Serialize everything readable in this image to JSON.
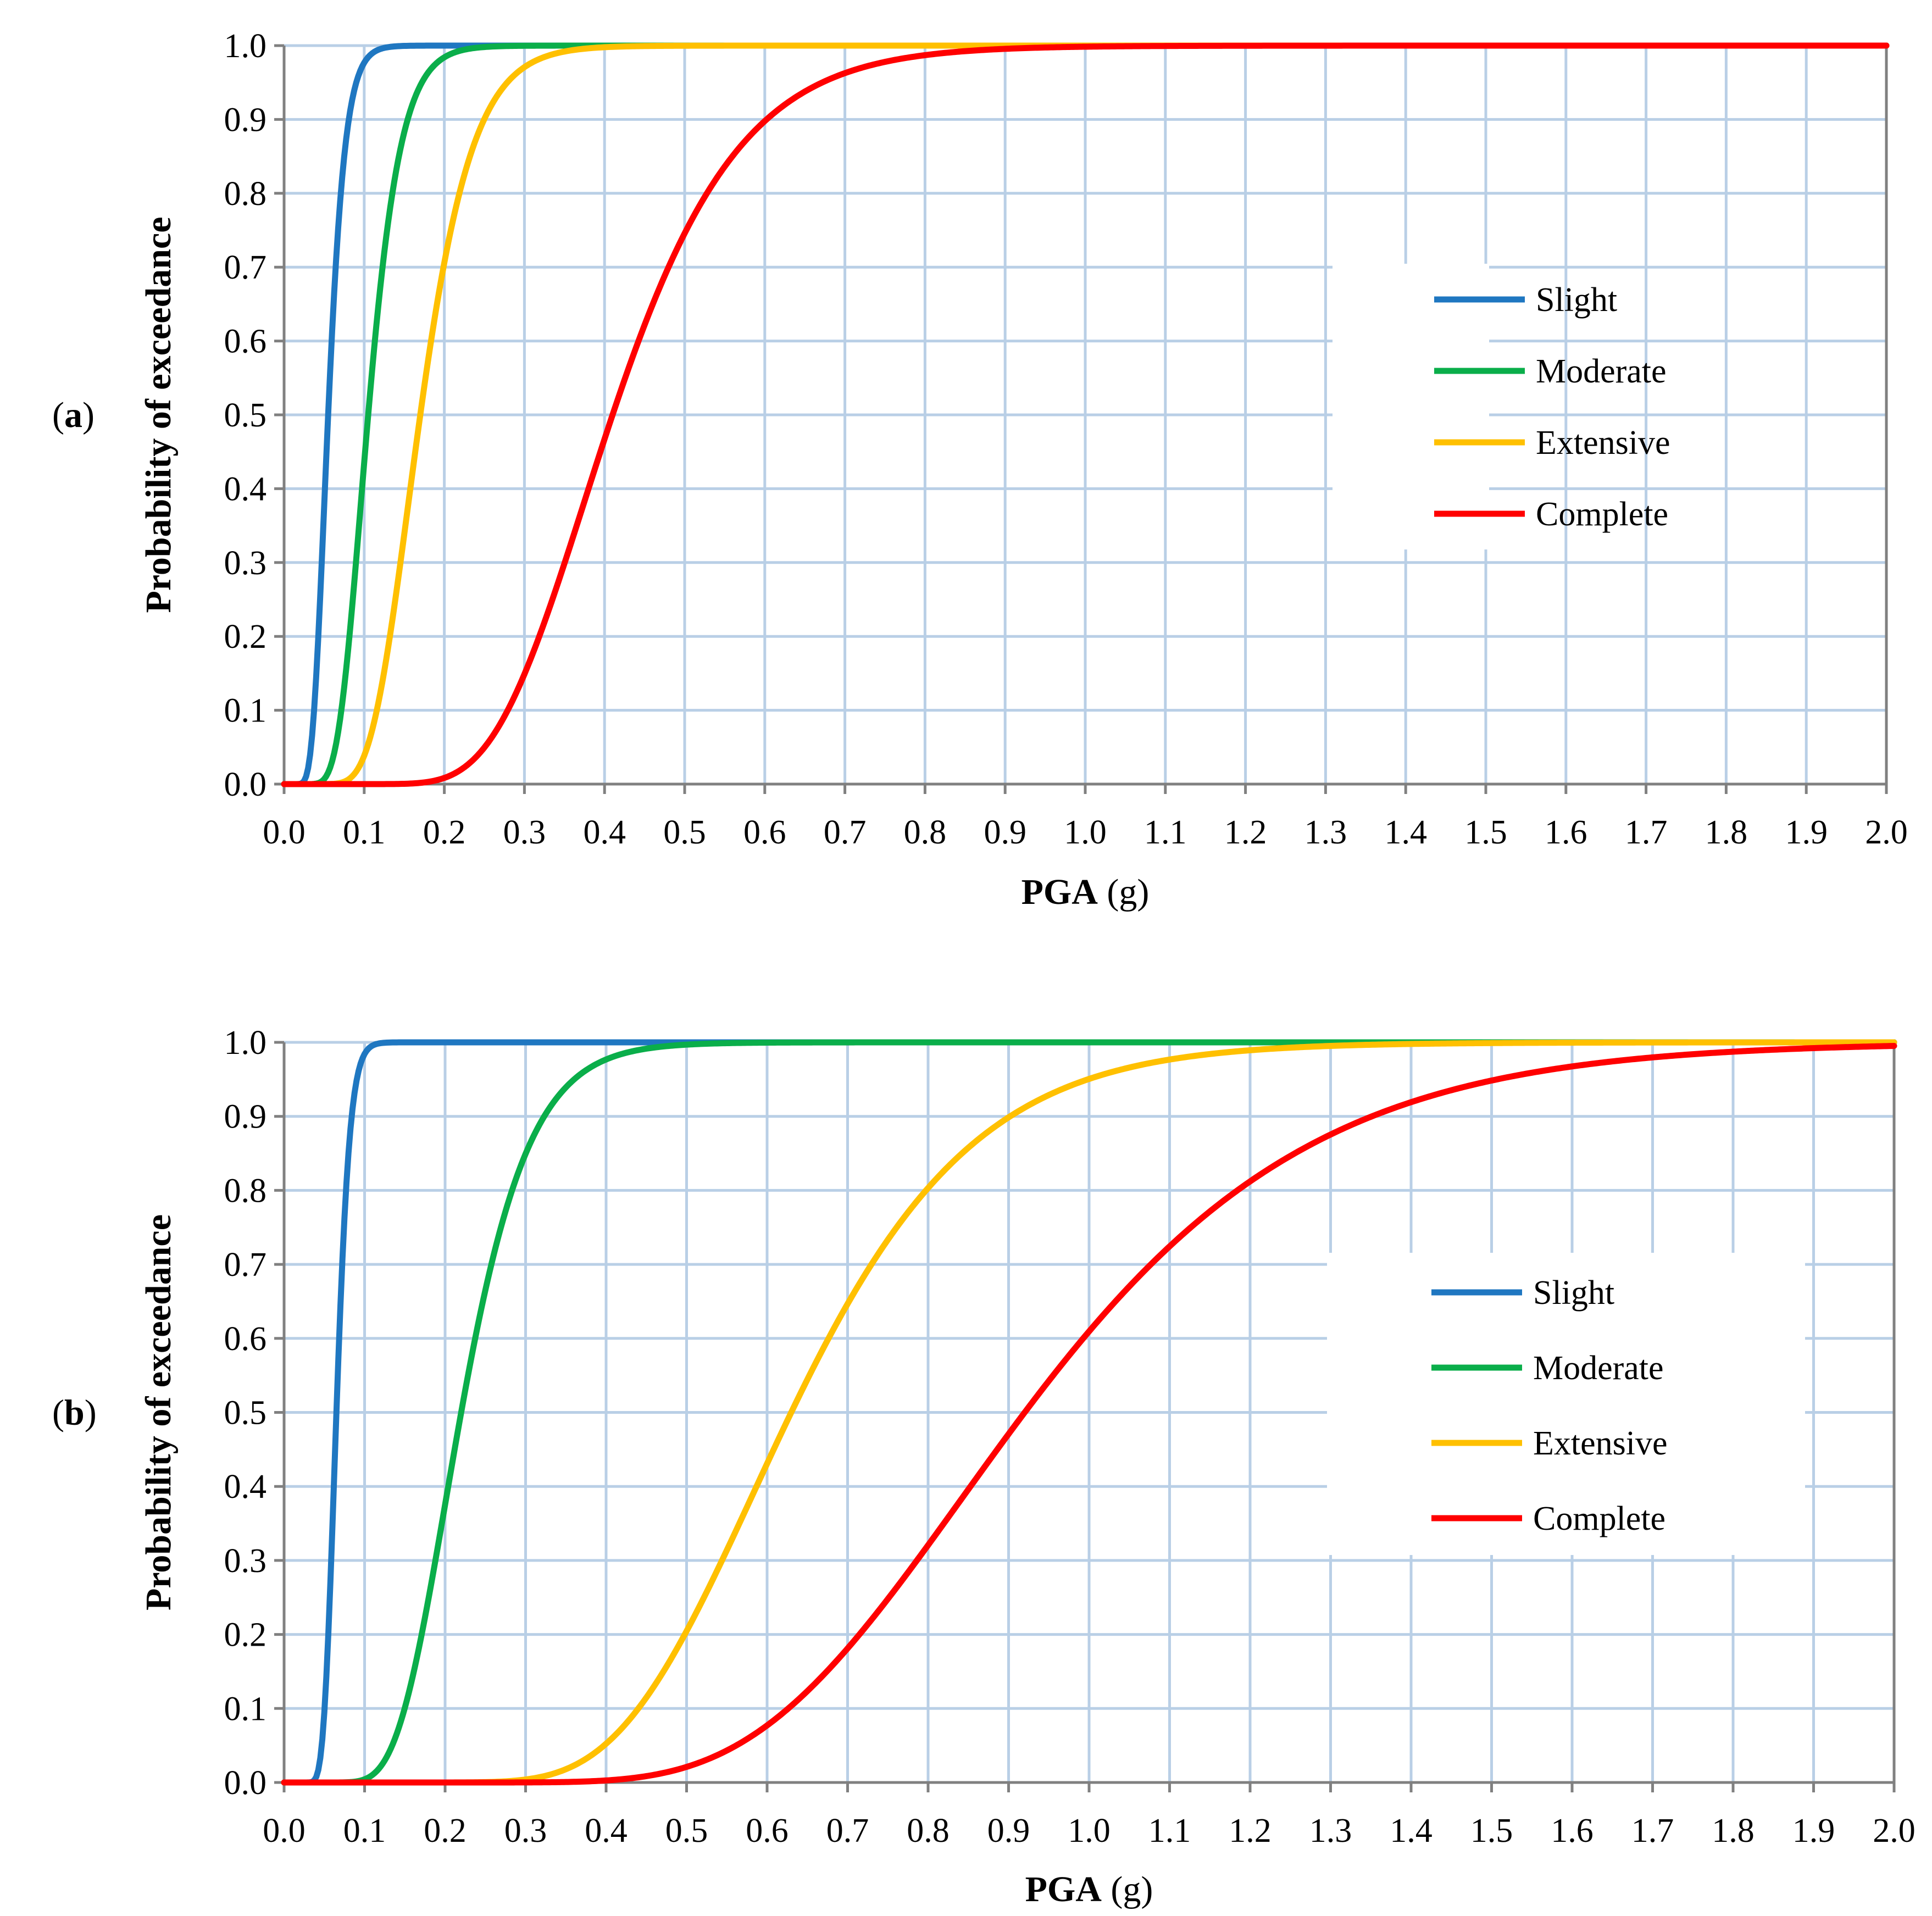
{
  "figure": {
    "panel_labels": [
      "(a)",
      "(b)"
    ]
  },
  "style": {
    "grid_color": "#b9cfe6",
    "axis_color": "#808080",
    "series_colors": {
      "Slight": "#1f77c1",
      "Moderate": "#0aae4a",
      "Extensive": "#ffc000",
      "Complete": "#ff0000"
    }
  },
  "chart_data": [
    {
      "type": "line",
      "panel": "(a)",
      "title": "",
      "xlabel_bold": "PGA",
      "xlabel_unit": "(g)",
      "ylabel": "Probability of exceedance",
      "xlim": [
        0,
        2.0
      ],
      "ylim": [
        0,
        1.0
      ],
      "xticks": [
        "0.0",
        "0.1",
        "0.2",
        "0.3",
        "0.4",
        "0.5",
        "0.6",
        "0.7",
        "0.8",
        "0.9",
        "1.0",
        "1.1",
        "1.2",
        "1.3",
        "1.4",
        "1.5",
        "1.6",
        "1.7",
        "1.8",
        "1.9",
        "2.0"
      ],
      "yticks": [
        "0.0",
        "0.1",
        "0.2",
        "0.3",
        "0.4",
        "0.5",
        "0.6",
        "0.7",
        "0.8",
        "0.9",
        "1.0"
      ],
      "grid": true,
      "legend_position": "center-right",
      "curve_model": "lognormal CDF",
      "series": [
        {
          "name": "Slight",
          "median": 0.055,
          "beta": 0.3
        },
        {
          "name": "Moderate",
          "median": 0.105,
          "beta": 0.3
        },
        {
          "name": "Extensive",
          "median": 0.17,
          "beta": 0.3
        },
        {
          "name": "Complete",
          "median": 0.41,
          "beta": 0.3
        }
      ]
    },
    {
      "type": "line",
      "panel": "(b)",
      "title": "",
      "xlabel_bold": "PGA",
      "xlabel_unit": "(g)",
      "ylabel": "Probability of exceedance",
      "xlim": [
        0,
        2.0
      ],
      "ylim": [
        0,
        1.0
      ],
      "xticks": [
        "0.0",
        "0.1",
        "0.2",
        "0.3",
        "0.4",
        "0.5",
        "0.6",
        "0.7",
        "0.8",
        "0.9",
        "1.0",
        "1.1",
        "1.2",
        "1.3",
        "1.4",
        "1.5",
        "1.6",
        "1.7",
        "1.8",
        "1.9",
        "2.0"
      ],
      "yticks": [
        "0.0",
        "0.1",
        "0.2",
        "0.3",
        "0.4",
        "0.5",
        "0.6",
        "0.7",
        "0.8",
        "0.9",
        "1.0"
      ],
      "grid": true,
      "legend_position": "center-right",
      "curve_model": "lognormal CDF",
      "series": [
        {
          "name": "Slight",
          "median": 0.065,
          "beta": 0.2
        },
        {
          "name": "Moderate",
          "median": 0.22,
          "beta": 0.3
        },
        {
          "name": "Extensive",
          "median": 0.63,
          "beta": 0.28
        },
        {
          "name": "Complete",
          "median": 0.92,
          "beta": 0.3
        }
      ]
    }
  ]
}
